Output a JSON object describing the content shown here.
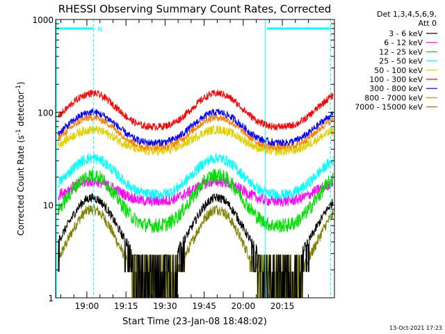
{
  "chart_data": {
    "type": "line",
    "title": "RHESSI Observing Summary Count Rates, Corrected",
    "xlabel": "Start Time (23-Jan-08 18:48:02)",
    "ylabel_main": "Corrected Count Rate (s",
    "ylabel_sup1": "-1",
    "ylabel_mid": " detector",
    "ylabel_sup2": "-1",
    "ylabel_end": ")",
    "yscale": "log",
    "ylim": [
      1,
      1000
    ],
    "xlim_minutes": [
      1128,
      1235
    ],
    "x_tick_minutes": [
      1140,
      1155,
      1170,
      1185,
      1200,
      1215
    ],
    "x_ticks": [
      "19:00",
      "19:15",
      "19:30",
      "19:45",
      "20:00",
      "20:15"
    ],
    "y_ticks": [
      "1",
      "10",
      "100",
      "1000"
    ],
    "y_tick_values": [
      1,
      10,
      100,
      1000
    ],
    "legend_header": [
      "Det 1,3,4,5,6,9,",
      "Att 0"
    ],
    "legend_position": "right",
    "timestamp": "13-Oct-2021 17:23",
    "night_flag_label": "N",
    "night_bars_minutes": [
      [
        1128,
        1142.5
      ],
      [
        1208.5,
        1233.5
      ]
    ],
    "saa_dashed_lines_minutes": [
      1142.5,
      1233.5
    ],
    "saa_solid_lines_minutes": [
      1128,
      1208.5
    ],
    "series": [
      {
        "name": "3 - 6 keV",
        "color": "#000000",
        "min": 2.5,
        "max": 12,
        "noise": 0.05,
        "floor": 0,
        "min_at": 1.7,
        "max_at": 12,
        "low_floor": true
      },
      {
        "name": "6 - 12 keV",
        "color": "#ff00ff",
        "min": 11,
        "max": 18,
        "noise": 0.06,
        "floor": 0
      },
      {
        "name": "12 - 25 keV",
        "color": "#00e000",
        "min": 6,
        "max": 21,
        "noise": 0.08,
        "floor": 0
      },
      {
        "name": "25 - 50 keV",
        "color": "#00ffff",
        "min": 13,
        "max": 32,
        "noise": 0.06,
        "floor": 0
      },
      {
        "name": "50 - 100 keV",
        "color": "#e0d000",
        "min": 38,
        "max": 65,
        "noise": 0.05,
        "floor": 0
      },
      {
        "name": "100 - 300 keV",
        "color": "#ff0000",
        "min": 70,
        "max": 160,
        "noise": 0.04,
        "floor": 0
      },
      {
        "name": "300 - 800 keV",
        "color": "#0000ff",
        "min": 47,
        "max": 100,
        "noise": 0.04,
        "floor": 0
      },
      {
        "name": "800 - 7000 keV",
        "color": "#ff8000",
        "min": 42,
        "max": 88,
        "noise": 0.04,
        "floor": 0
      },
      {
        "name": "7000 - 15000 keV",
        "color": "#808000",
        "min": 1.5,
        "max": 9,
        "noise": 0.06,
        "floor": 0,
        "low_floor": true
      }
    ]
  }
}
